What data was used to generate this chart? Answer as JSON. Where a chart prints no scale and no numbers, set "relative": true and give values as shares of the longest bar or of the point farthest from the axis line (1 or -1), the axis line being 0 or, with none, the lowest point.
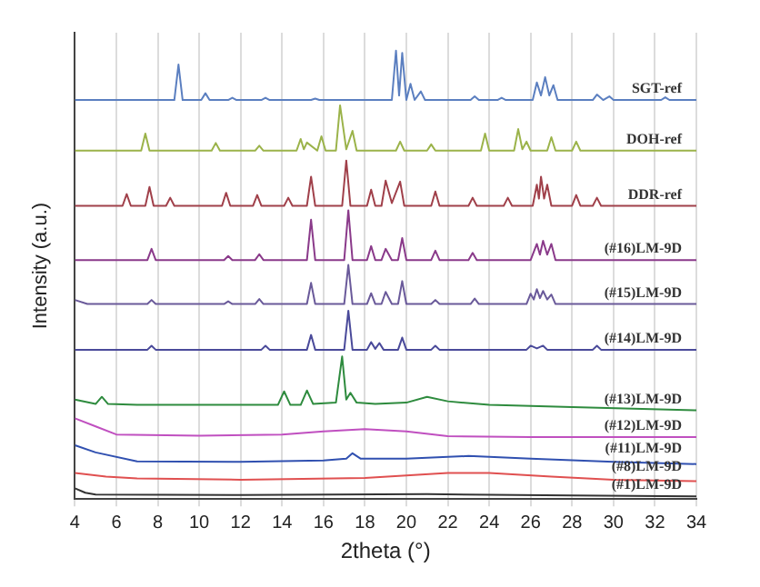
{
  "chart_data": {
    "type": "line",
    "xlabel": "2theta (°)",
    "ylabel": "Intensity (a.u.)",
    "relative": true,
    "xlim": [
      4,
      34
    ],
    "xticks": [
      4,
      6,
      8,
      10,
      12,
      14,
      16,
      18,
      20,
      22,
      24,
      26,
      28,
      30,
      32,
      34
    ],
    "grid": "x",
    "legend": false,
    "marker": "none",
    "line_style": "solid",
    "series": [
      {
        "name": "SGT-ref",
        "color": "#5b7fc0",
        "x": [
          4,
          8.8,
          9.0,
          9.2,
          10.1,
          10.3,
          10.5,
          11.4,
          11.6,
          11.8,
          13.0,
          13.2,
          13.4,
          15.4,
          15.6,
          15.8,
          19.3,
          19.5,
          19.65,
          19.8,
          20.0,
          20.2,
          20.4,
          20.7,
          20.9,
          23.1,
          23.3,
          23.5,
          24.4,
          24.6,
          24.8,
          26.1,
          26.3,
          26.5,
          26.7,
          26.9,
          27.1,
          27.3,
          29.0,
          29.2,
          29.5,
          29.8,
          30.0,
          32.3,
          32.5,
          32.7,
          34
        ],
        "values": [
          0.89,
          0.89,
          0.969,
          0.89,
          0.89,
          0.905,
          0.89,
          0.89,
          0.895,
          0.89,
          0.89,
          0.895,
          0.89,
          0.89,
          0.893,
          0.89,
          0.89,
          1,
          0.9,
          0.995,
          0.89,
          0.926,
          0.89,
          0.909,
          0.89,
          0.89,
          0.898,
          0.89,
          0.89,
          0.895,
          0.89,
          0.89,
          0.929,
          0.9,
          0.941,
          0.9,
          0.923,
          0.89,
          0.89,
          0.902,
          0.89,
          0.898,
          0.89,
          0.89,
          0.896,
          0.89,
          0.89
        ]
      },
      {
        "name": "DOH-ref",
        "color": "#9bb34a",
        "x": [
          4,
          7.2,
          7.4,
          7.6,
          10.6,
          10.8,
          11.0,
          12.7,
          12.9,
          13.1,
          14.7,
          14.9,
          15.05,
          15.2,
          15.7,
          15.9,
          16.1,
          16.6,
          16.8,
          17.1,
          17.4,
          17.6,
          19.5,
          19.7,
          19.9,
          21.0,
          21.2,
          21.4,
          23.6,
          23.8,
          24.0,
          25.2,
          25.4,
          25.6,
          25.8,
          26.0,
          26.8,
          27.0,
          27.2,
          28.0,
          28.2,
          28.4,
          34
        ],
        "values": [
          0.777,
          0.777,
          0.815,
          0.777,
          0.777,
          0.794,
          0.777,
          0.777,
          0.788,
          0.777,
          0.777,
          0.803,
          0.78,
          0.795,
          0.777,
          0.809,
          0.777,
          0.777,
          0.878,
          0.78,
          0.821,
          0.777,
          0.777,
          0.797,
          0.777,
          0.777,
          0.791,
          0.777,
          0.777,
          0.815,
          0.777,
          0.777,
          0.825,
          0.78,
          0.797,
          0.777,
          0.777,
          0.807,
          0.777,
          0.777,
          0.797,
          0.777,
          0.777
        ]
      },
      {
        "name": "DDR-ref",
        "color": "#a0404a",
        "x": [
          4,
          6.3,
          6.5,
          6.7,
          7.4,
          7.6,
          7.8,
          8.4,
          8.6,
          8.8,
          11.1,
          11.3,
          11.5,
          12.6,
          12.8,
          13.0,
          14.1,
          14.3,
          14.5,
          15.2,
          15.4,
          15.6,
          16.9,
          17.1,
          17.3,
          18.1,
          18.3,
          18.5,
          18.8,
          19.0,
          19.3,
          19.7,
          19.9,
          21.2,
          21.4,
          21.6,
          23.0,
          23.2,
          23.4,
          24.7,
          24.9,
          25.1,
          26.1,
          26.3,
          26.4,
          26.5,
          26.65,
          26.8,
          27.0,
          28.0,
          28.2,
          28.4,
          29.0,
          29.2,
          29.4,
          34
        ],
        "values": [
          0.654,
          0.654,
          0.68,
          0.654,
          0.654,
          0.696,
          0.654,
          0.654,
          0.672,
          0.654,
          0.654,
          0.683,
          0.654,
          0.654,
          0.678,
          0.654,
          0.654,
          0.672,
          0.654,
          0.654,
          0.719,
          0.654,
          0.654,
          0.755,
          0.654,
          0.654,
          0.69,
          0.654,
          0.654,
          0.71,
          0.66,
          0.708,
          0.654,
          0.654,
          0.686,
          0.654,
          0.654,
          0.672,
          0.654,
          0.654,
          0.672,
          0.654,
          0.654,
          0.701,
          0.67,
          0.719,
          0.67,
          0.701,
          0.654,
          0.654,
          0.678,
          0.654,
          0.654,
          0.672,
          0.654,
          0.654
        ]
      },
      {
        "name": "(#16)LM-9D",
        "color": "#8a3a8a",
        "x": [
          4,
          7.5,
          7.7,
          7.9,
          11.2,
          11.4,
          11.6,
          12.7,
          12.9,
          13.1,
          15.2,
          15.4,
          15.6,
          17.0,
          17.2,
          17.4,
          18.1,
          18.3,
          18.5,
          18.8,
          19.0,
          19.3,
          19.6,
          19.8,
          20.0,
          21.2,
          21.4,
          21.6,
          23.0,
          23.2,
          23.4,
          26.0,
          26.3,
          26.45,
          26.6,
          26.8,
          27.0,
          27.2,
          34
        ],
        "values": [
          0.533,
          0.533,
          0.558,
          0.533,
          0.533,
          0.542,
          0.533,
          0.533,
          0.546,
          0.533,
          0.533,
          0.623,
          0.533,
          0.533,
          0.644,
          0.533,
          0.533,
          0.564,
          0.533,
          0.533,
          0.558,
          0.533,
          0.533,
          0.582,
          0.533,
          0.533,
          0.554,
          0.533,
          0.533,
          0.549,
          0.533,
          0.533,
          0.569,
          0.545,
          0.576,
          0.545,
          0.569,
          0.533,
          0.533
        ]
      },
      {
        "name": "(#15)LM-9D",
        "color": "#6a5a9a",
        "x": [
          4,
          4.6,
          7.5,
          7.7,
          7.9,
          11.2,
          11.4,
          11.6,
          12.7,
          12.9,
          13.1,
          15.2,
          15.4,
          15.6,
          17.0,
          17.2,
          17.4,
          18.1,
          18.3,
          18.5,
          18.8,
          19.0,
          19.3,
          19.6,
          19.8,
          20.0,
          21.2,
          21.4,
          21.6,
          23.1,
          23.3,
          23.5,
          25.8,
          26.0,
          26.15,
          26.3,
          26.45,
          26.6,
          26.8,
          27.0,
          27.2,
          34
        ],
        "values": [
          0.444,
          0.435,
          0.435,
          0.444,
          0.435,
          0.435,
          0.441,
          0.435,
          0.435,
          0.446,
          0.435,
          0.435,
          0.482,
          0.435,
          0.435,
          0.522,
          0.435,
          0.435,
          0.459,
          0.435,
          0.435,
          0.462,
          0.435,
          0.435,
          0.486,
          0.435,
          0.435,
          0.444,
          0.435,
          0.435,
          0.447,
          0.435,
          0.435,
          0.458,
          0.445,
          0.468,
          0.448,
          0.464,
          0.445,
          0.456,
          0.435,
          0.435
        ]
      },
      {
        "name": "(#14)LM-9D",
        "color": "#4a4a9a",
        "x": [
          4,
          7.5,
          7.7,
          7.9,
          13.0,
          13.2,
          13.4,
          15.2,
          15.4,
          15.6,
          17.0,
          17.2,
          17.4,
          18.1,
          18.3,
          18.5,
          18.7,
          18.9,
          19.6,
          19.8,
          20.0,
          21.2,
          21.4,
          21.6,
          25.8,
          26.0,
          26.3,
          26.6,
          26.8,
          29.0,
          29.2,
          29.4,
          34
        ],
        "values": [
          0.333,
          0.333,
          0.342,
          0.333,
          0.333,
          0.342,
          0.333,
          0.333,
          0.366,
          0.333,
          0.333,
          0.42,
          0.333,
          0.333,
          0.35,
          0.335,
          0.348,
          0.333,
          0.333,
          0.36,
          0.333,
          0.333,
          0.342,
          0.333,
          0.333,
          0.342,
          0.336,
          0.342,
          0.333,
          0.333,
          0.342,
          0.333,
          0.333
        ]
      },
      {
        "name": "(#13)LM-9D",
        "color": "#2e8b3e",
        "x": [
          4,
          5.0,
          5.3,
          5.6,
          7.0,
          13.8,
          14.1,
          14.4,
          14.9,
          15.2,
          15.5,
          16.6,
          16.9,
          17.1,
          17.3,
          17.6,
          18.5,
          20.0,
          21.0,
          22.0,
          24.0,
          28.0,
          34
        ],
        "values": [
          0.222,
          0.212,
          0.228,
          0.212,
          0.21,
          0.21,
          0.24,
          0.21,
          0.21,
          0.242,
          0.212,
          0.215,
          0.318,
          0.222,
          0.237,
          0.215,
          0.212,
          0.215,
          0.228,
          0.218,
          0.21,
          0.205,
          0.198
        ]
      },
      {
        "name": "(#12)LM-9D",
        "color": "#c050c0",
        "x": [
          4,
          5,
          6,
          10,
          14,
          16,
          18,
          20,
          22,
          26,
          34
        ],
        "values": [
          0.18,
          0.162,
          0.144,
          0.141,
          0.144,
          0.151,
          0.156,
          0.151,
          0.14,
          0.138,
          0.138
        ]
      },
      {
        "name": "(#11)LM-9D",
        "color": "#3050b0",
        "x": [
          4,
          5,
          7,
          12,
          16,
          17.1,
          17.4,
          17.8,
          20,
          23,
          26,
          30,
          34
        ],
        "values": [
          0.12,
          0.104,
          0.084,
          0.083,
          0.086,
          0.09,
          0.102,
          0.09,
          0.09,
          0.096,
          0.09,
          0.083,
          0.078
        ]
      },
      {
        "name": "(#8)LM-9D",
        "color": "#e05050",
        "x": [
          4,
          5.5,
          7,
          12,
          18,
          22,
          24,
          27,
          30,
          34
        ],
        "values": [
          0.058,
          0.05,
          0.046,
          0.043,
          0.047,
          0.058,
          0.058,
          0.05,
          0.043,
          0.04
        ]
      },
      {
        "name": "(#1)LM-9D",
        "color": "#333333",
        "x": [
          4,
          4.5,
          5,
          12,
          21,
          28,
          34
        ],
        "values": [
          0.024,
          0.014,
          0.01,
          0.009,
          0.011,
          0.008,
          0.006
        ]
      }
    ]
  }
}
